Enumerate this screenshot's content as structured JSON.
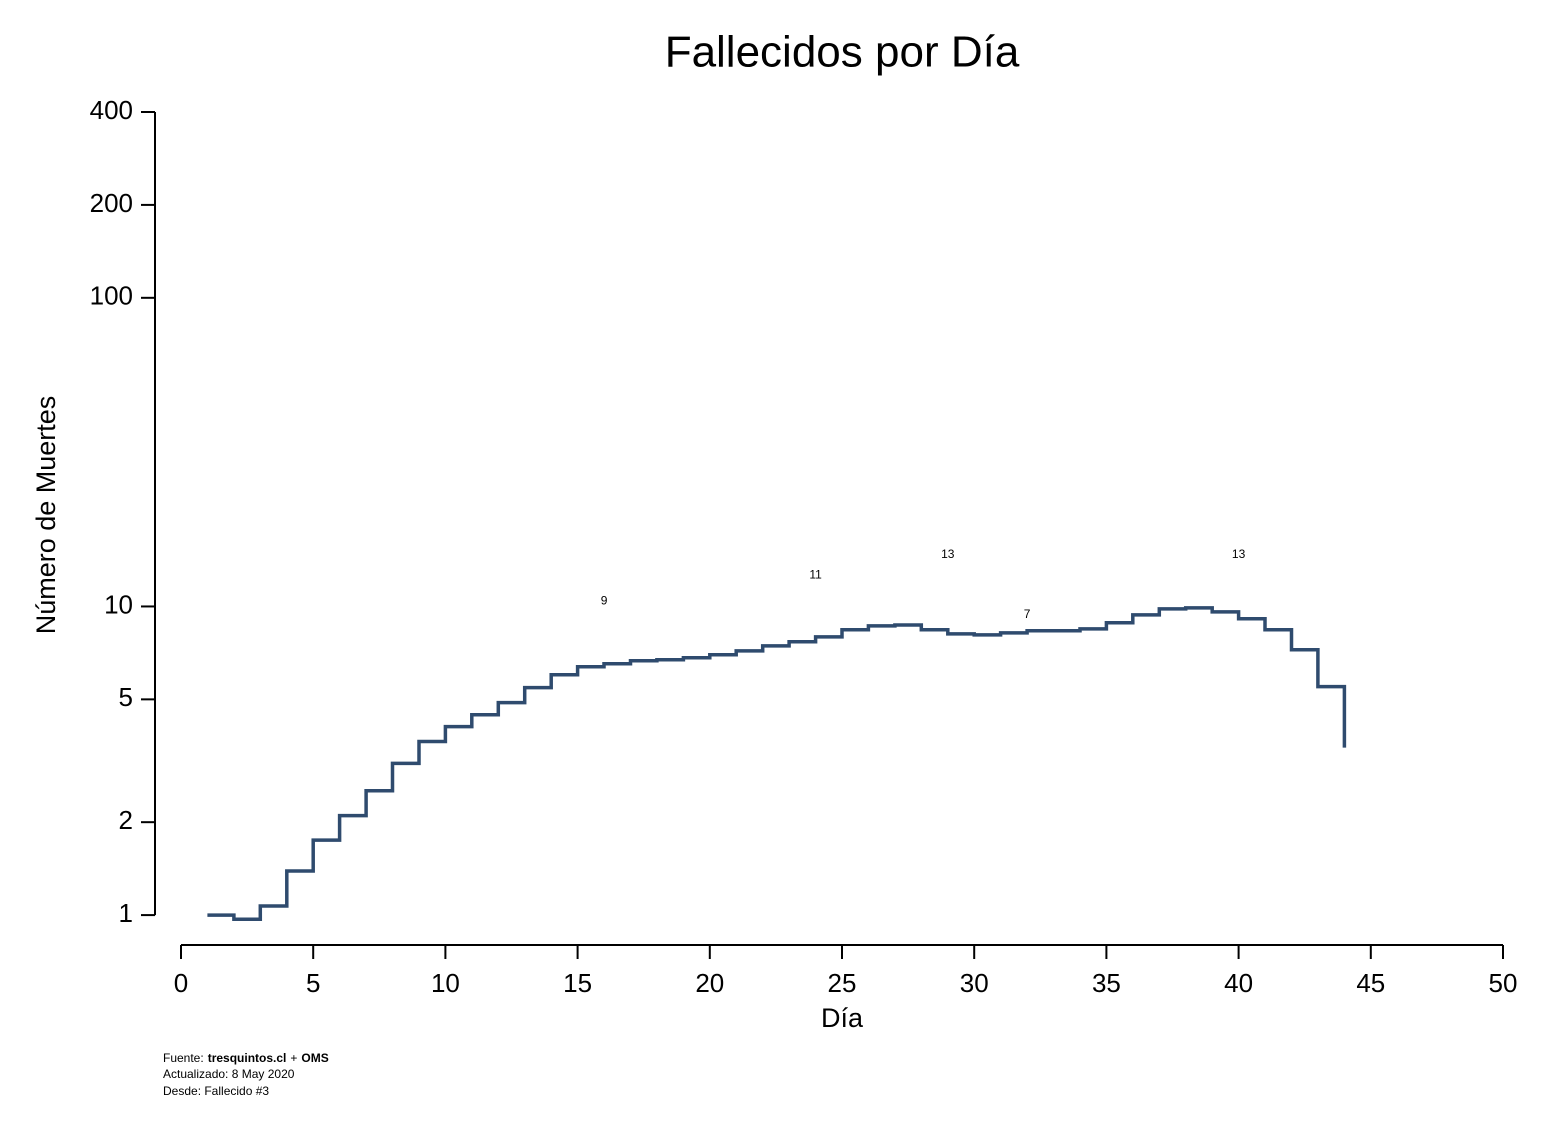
{
  "chart_data": {
    "type": "line",
    "title": "Fallecidos por Día",
    "xlabel": "Día",
    "ylabel": "Número de Muertes",
    "x": [
      1,
      2,
      3,
      4,
      5,
      6,
      7,
      8,
      9,
      10,
      11,
      12,
      13,
      14,
      15,
      16,
      17,
      18,
      19,
      20,
      21,
      22,
      23,
      24,
      25,
      26,
      27,
      28,
      29,
      30,
      31,
      32,
      33,
      34,
      35,
      36,
      37,
      38,
      39,
      40,
      41,
      42,
      43,
      44
    ],
    "series": [
      {
        "color": "#2f4b6e",
        "values": [
          1.0,
          0.97,
          1.07,
          1.39,
          1.75,
          2.1,
          2.53,
          3.1,
          3.65,
          4.08,
          4.46,
          4.88,
          5.46,
          6.01,
          6.38,
          6.52,
          6.67,
          6.72,
          6.82,
          6.97,
          7.18,
          7.45,
          7.68,
          7.97,
          8.4,
          8.65,
          8.71,
          8.4,
          8.15,
          8.09,
          8.21,
          8.34,
          8.34,
          8.46,
          8.85,
          9.39,
          9.82,
          9.89,
          9.6,
          9.12,
          8.4,
          7.24,
          5.5,
          3.49
        ]
      }
    ],
    "step": true,
    "log_y": true,
    "xlim": [
      0,
      50
    ],
    "xticks": [
      0,
      5,
      10,
      15,
      20,
      25,
      30,
      35,
      40,
      45,
      50
    ],
    "ylim": [
      0.8,
      400
    ],
    "yticks": [
      1,
      2,
      5,
      10,
      100,
      200,
      400
    ],
    "annotations": [
      {
        "label": "9",
        "x": 16,
        "y": 10.4
      },
      {
        "label": "11",
        "x": 24,
        "y": 12.6
      },
      {
        "label": "13",
        "x": 29,
        "y": 14.7
      },
      {
        "label": "7",
        "x": 32,
        "y": 9.4
      },
      {
        "label": "13",
        "x": 40,
        "y": 14.7
      }
    ],
    "footer": {
      "source_label": "Fuente:",
      "source_site": "tresquintos.cl",
      "source_sep": "+",
      "source_org": "OMS",
      "updated": "Actualizado: 8 May 2020",
      "since": "Desde: Fallecido #3"
    }
  }
}
